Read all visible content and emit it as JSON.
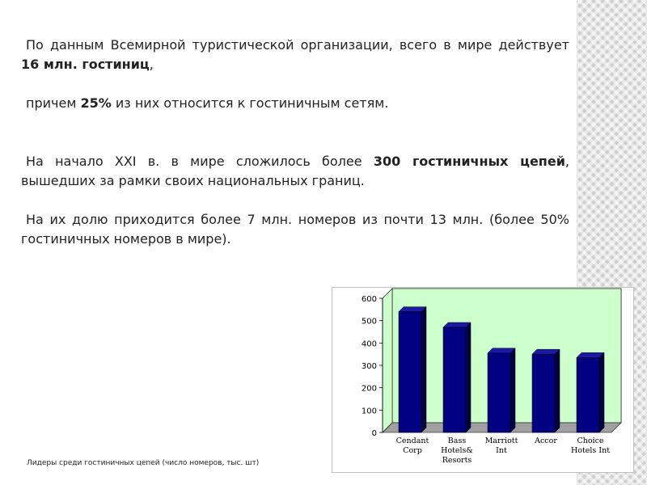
{
  "paragraphs": [
    {
      "parts": [
        {
          "text": "По данным Всемирной туристической организации, всего в мире действует ",
          "bold": false
        },
        {
          "text": "16 млн. гостиниц",
          "bold": true
        },
        {
          "text": ",",
          "bold": false
        }
      ]
    },
    {
      "parts": [
        {
          "text": "причем ",
          "bold": false
        },
        {
          "text": "25%",
          "bold": true
        },
        {
          "text": " из них относится к гостиничным сетям.",
          "bold": false
        }
      ]
    },
    {
      "parts": [
        {
          "text": "На начало XXI в. в мире сложилось более ",
          "bold": false
        },
        {
          "text": "300 гостиничных цепей",
          "bold": true
        },
        {
          "text": ", вышедших за рамки своих национальных границ.",
          "bold": false
        }
      ]
    },
    {
      "parts": [
        {
          "text": "На их долю приходится более 7 млн. номеров из почти 13 млн. (более 50% гостиничных номеров в мире).",
          "bold": false
        }
      ]
    }
  ],
  "caption": "Лидеры среди гостиничных цепей (число номеров, тыс. шт)",
  "colors": {
    "bar": "#000080",
    "plot_bg": "#ccffcc",
    "floor": "#a0a0a0",
    "frame": "#bfbfbf"
  },
  "chart_data": {
    "type": "bar",
    "categories": [
      [
        "Cendant",
        "Corp"
      ],
      [
        "Bass",
        "Hotels&",
        "Resorts"
      ],
      [
        "Marriott",
        "Int"
      ],
      [
        "Accor"
      ],
      [
        "Choice",
        "Hotels Int"
      ]
    ],
    "values": [
      540,
      470,
      355,
      350,
      335
    ],
    "ylim": [
      0,
      600
    ],
    "yticks": [
      0,
      100,
      200,
      300,
      400,
      500,
      600
    ],
    "grid": false,
    "title": "",
    "xlabel": "",
    "ylabel": ""
  }
}
